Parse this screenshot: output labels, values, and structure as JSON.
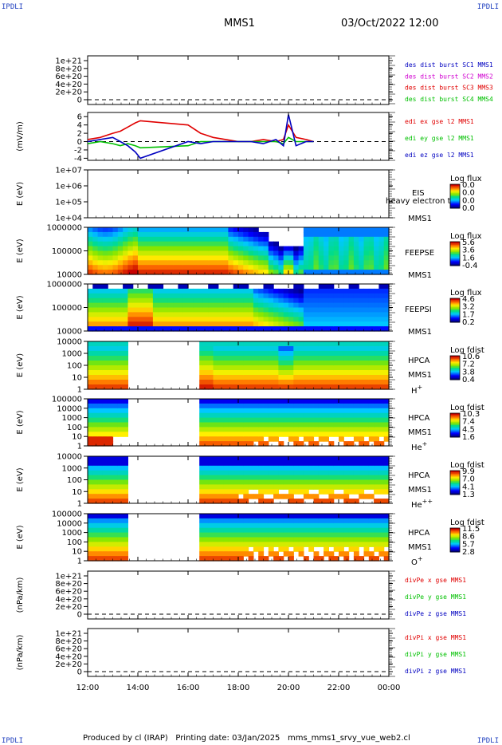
{
  "corner_label": "IPDLI",
  "header": {
    "title": "MMS1",
    "datetime": "03/Oct/2022 12:00"
  },
  "footer": {
    "produced": "Produced by cl (IRAP)",
    "printing": "Printing date: 03/Jan/2025",
    "script": "mms_mms1_srvy_vue_web2.cl"
  },
  "colors": {
    "ink": "#000000",
    "red": "#e00000",
    "green": "#00c000",
    "blue": "#0000c0",
    "magenta": "#d000d0",
    "gap": "#ffffff"
  },
  "chart_data": {
    "type": "heatmap",
    "x_ticks": [
      "12:00",
      "14:00",
      "16:00",
      "18:00",
      "20:00",
      "22:00",
      "00:00"
    ],
    "xlim_hours": [
      12,
      24
    ],
    "panels": [
      {
        "id": "p1",
        "kind": "line",
        "y_ticks": [
          "1e+21",
          "8e+20",
          "6e+20",
          "4e+20",
          "2e+20",
          "0"
        ],
        "ylabel": "",
        "legend": [
          {
            "text": "des dist burst SC1 MMS1",
            "color": "#0000c0"
          },
          {
            "text": "des dist burst SC2 MMS2",
            "color": "#d000d0"
          },
          {
            "text": "des dist burst SC3 MMS3",
            "color": "#e00000"
          },
          {
            "text": "des dist burst SC4 MMS4",
            "color": "#00c000"
          }
        ],
        "series": []
      },
      {
        "id": "p2",
        "kind": "line",
        "y_ticks": [
          "6",
          "4",
          "2",
          "0",
          "-2",
          "-4"
        ],
        "ylim": [
          -4.5,
          7
        ],
        "ylabel": "(mV/m)",
        "legend": [
          {
            "text": "edi ex gse l2 MMS1",
            "color": "#e00000"
          },
          {
            "text": "edi ey gse l2 MMS1",
            "color": "#00c000"
          },
          {
            "text": "edi ez gse l2 MMS1",
            "color": "#0000c0"
          }
        ],
        "series": [
          {
            "color": "#e00000",
            "x": [
              12.0,
              12.5,
              13.0,
              13.3,
              13.6,
              13.9,
              14.1,
              16.0,
              16.5,
              17.0,
              17.5,
              18.0,
              18.5,
              19.0,
              19.5,
              19.8,
              20.0,
              20.3,
              20.7,
              21.0
            ],
            "y": [
              0.5,
              1.0,
              2.0,
              2.5,
              3.5,
              4.5,
              5.0,
              4.0,
              2.0,
              1.0,
              0.5,
              0.0,
              0.0,
              0.5,
              0.0,
              0.5,
              4.0,
              1.0,
              0.5,
              0.0
            ]
          },
          {
            "color": "#00c000",
            "x": [
              12.0,
              12.5,
              13.0,
              13.3,
              13.6,
              13.9,
              14.1,
              16.0,
              16.5,
              17.0,
              17.5,
              18.0,
              18.5,
              19.0,
              19.5,
              19.8,
              20.0,
              20.3,
              20.7,
              21.0
            ],
            "y": [
              -0.5,
              0.0,
              -0.5,
              -1.0,
              -0.5,
              -1.0,
              -1.5,
              -1.0,
              0.0,
              0.0,
              0.0,
              0.0,
              0.0,
              0.0,
              0.0,
              -0.5,
              1.0,
              0.0,
              0.0,
              0.0
            ]
          },
          {
            "color": "#0000c0",
            "x": [
              12.0,
              12.5,
              13.0,
              13.3,
              13.6,
              13.9,
              14.1,
              16.0,
              16.5,
              17.0,
              17.5,
              18.0,
              18.5,
              19.0,
              19.5,
              19.8,
              20.0,
              20.3,
              20.7,
              21.0
            ],
            "y": [
              0.0,
              0.5,
              1.0,
              0.0,
              -1.0,
              -2.5,
              -4.0,
              0.0,
              -0.5,
              0.0,
              0.0,
              0.0,
              0.0,
              -0.5,
              0.5,
              -1.0,
              6.5,
              -1.0,
              0.0,
              0.0
            ]
          }
        ]
      },
      {
        "id": "p3",
        "kind": "spec",
        "y_ticks": [
          "1e+07",
          "1e+06",
          "1e+05",
          "1e+04"
        ],
        "ylabel": "E (eV)",
        "labels": [
          "EIS",
          "heavy electron to",
          "MMS1"
        ],
        "cbar": {
          "title": "Log flux",
          "ticks": [
            "0.0",
            "0.0",
            "0.0",
            "0.0"
          ]
        },
        "fill": "none"
      },
      {
        "id": "p4",
        "kind": "spec",
        "y_ticks": [
          "1000000",
          "100000",
          "10000"
        ],
        "ylabel": "E (eV)",
        "labels": [
          "FEEPSE",
          "MMS1"
        ],
        "cbar": {
          "title": "Log flux",
          "ticks": [
            "5.6",
            "3.6",
            "1.6",
            "-0.4"
          ]
        },
        "fill": "feepse"
      },
      {
        "id": "p5",
        "kind": "spec",
        "y_ticks": [
          "1000000",
          "100000",
          "10000"
        ],
        "ylabel": "E (eV)",
        "labels": [
          "FEEPSI",
          "MMS1"
        ],
        "cbar": {
          "title": "Log flux",
          "ticks": [
            "4.6",
            "3.2",
            "1.7",
            "0.2"
          ]
        },
        "fill": "feepsi"
      },
      {
        "id": "p6",
        "kind": "spec",
        "y_ticks": [
          "10000",
          "1000",
          "100",
          "10",
          "1"
        ],
        "ylabel": "E (eV)",
        "labels": [
          "HPCA",
          "MMS1",
          "H+"
        ],
        "cbar": {
          "title": "Log fdist",
          "ticks": [
            "10.6",
            "7.2",
            "3.8",
            "0.4"
          ]
        },
        "fill": "hpca_h",
        "gap_hours": [
          13.7,
          16.45
        ]
      },
      {
        "id": "p7",
        "kind": "spec",
        "y_ticks": [
          "100000",
          "10000",
          "1000",
          "100",
          "10",
          "1"
        ],
        "ylabel": "E (eV)",
        "labels": [
          "HPCA",
          "MMS1",
          "He+"
        ],
        "cbar": {
          "title": "Log fdist",
          "ticks": [
            "10.3",
            "7.4",
            "4.5",
            "1.6"
          ]
        },
        "fill": "hpca_he",
        "gap_hours": [
          13.7,
          16.45
        ]
      },
      {
        "id": "p8",
        "kind": "spec",
        "y_ticks": [
          "10000",
          "1000",
          "100",
          "10",
          "1"
        ],
        "ylabel": "E (eV)",
        "labels": [
          "HPCA",
          "MMS1",
          "He++"
        ],
        "cbar": {
          "title": "Log fdist",
          "ticks": [
            "9.9",
            "7.0",
            "4.1",
            "1.3"
          ]
        },
        "fill": "hpca_hepp",
        "gap_hours": [
          13.7,
          16.45
        ]
      },
      {
        "id": "p9",
        "kind": "spec",
        "y_ticks": [
          "100000",
          "10000",
          "1000",
          "100",
          "10",
          "1"
        ],
        "ylabel": "E (eV)",
        "labels": [
          "HPCA",
          "MMS1",
          "O+"
        ],
        "cbar": {
          "title": "Log fdist",
          "ticks": [
            "11.5",
            "8.6",
            "5.7",
            "2.8"
          ]
        },
        "fill": "hpca_o",
        "gap_hours": [
          13.7,
          16.45
        ]
      },
      {
        "id": "p10",
        "kind": "line",
        "y_ticks": [
          "1e+21",
          "8e+20",
          "6e+20",
          "4e+20",
          "2e+20",
          "0"
        ],
        "ylabel": "(nPa/km)",
        "legend": [
          {
            "text": "divPe x gse MMS1",
            "color": "#e00000"
          },
          {
            "text": "divPe y gse MMS1",
            "color": "#00c000"
          },
          {
            "text": "divPe z gse MMS1",
            "color": "#0000c0"
          }
        ],
        "series": []
      },
      {
        "id": "p11",
        "kind": "line",
        "y_ticks": [
          "1e+21",
          "8e+20",
          "6e+20",
          "4e+20",
          "2e+20",
          "0"
        ],
        "ylabel": "(nPa/km)",
        "legend": [
          {
            "text": "divPi x gse MMS1",
            "color": "#e00000"
          },
          {
            "text": "divPi y gse MMS1",
            "color": "#00c000"
          },
          {
            "text": "divPi z gse MMS1",
            "color": "#0000c0"
          }
        ],
        "series": []
      }
    ]
  }
}
